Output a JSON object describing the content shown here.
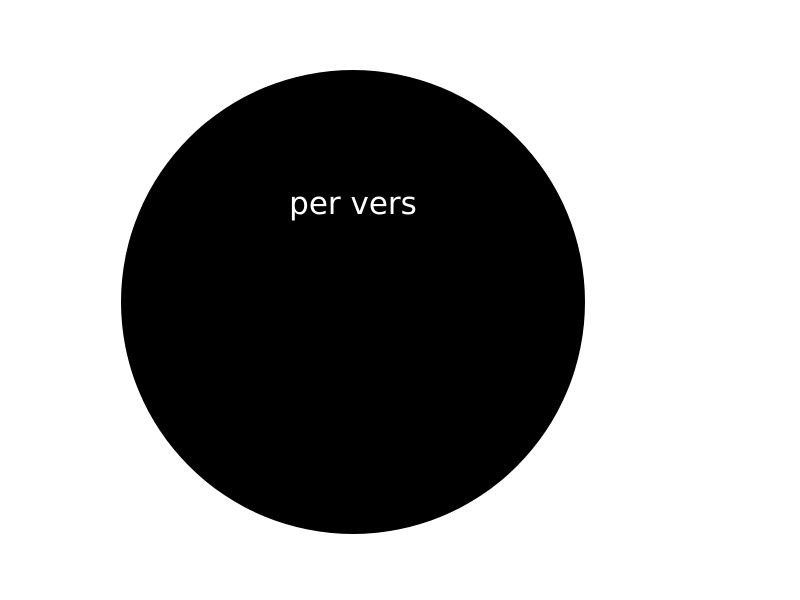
{
  "diagram": {
    "shape": {
      "type": "circle",
      "fill": "#000000",
      "label": "per vers",
      "label_color": "#ffffff"
    },
    "background": "#ffffff"
  }
}
